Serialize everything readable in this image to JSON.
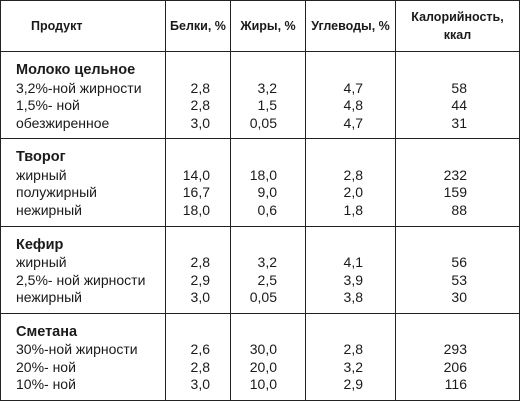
{
  "headers": [
    "Продукт",
    "Белки, %",
    "Жиры, %",
    "Углеводы, %",
    "Калорийность, ккал"
  ],
  "headers_split": {
    "calories_line1": "Калорийность,",
    "calories_line2": "ккал"
  },
  "groups": [
    {
      "name": "Молоко цельное",
      "rows": [
        {
          "label": "3,2%-ной жирности",
          "protein": "2,8",
          "fat": "3,2",
          "carbs": "4,7",
          "kcal": "58"
        },
        {
          "label": "1,5%- ной",
          "protein": "2,8",
          "fat": "1,5",
          "carbs": "4,8",
          "kcal": "44"
        },
        {
          "label": "обезжиренное",
          "protein": "3,0",
          "fat": "0,05",
          "carbs": "4,7",
          "kcal": "31"
        }
      ]
    },
    {
      "name": "Творог",
      "rows": [
        {
          "label": "жирный",
          "protein": "14,0",
          "fat": "18,0",
          "carbs": "2,8",
          "kcal": "232"
        },
        {
          "label": "полужирный",
          "protein": "16,7",
          "fat": "9,0",
          "carbs": "2,0",
          "kcal": "159"
        },
        {
          "label": "нежирный",
          "protein": "18,0",
          "fat": "0,6",
          "carbs": "1,8",
          "kcal": "88"
        }
      ]
    },
    {
      "name": "Кефир",
      "rows": [
        {
          "label": "жирный",
          "protein": "2,8",
          "fat": "3,2",
          "carbs": "4,1",
          "kcal": "56"
        },
        {
          "label": "2,5%- ной жирности",
          "protein": "2,9",
          "fat": "2,5",
          "carbs": "3,9",
          "kcal": "53"
        },
        {
          "label": "нежирный",
          "protein": "3,0",
          "fat": "0,05",
          "carbs": "3,8",
          "kcal": "30"
        }
      ]
    },
    {
      "name": "Сметана",
      "rows": [
        {
          "label": "30%-ной жирности",
          "protein": "2,6",
          "fat": "30,0",
          "carbs": "2,8",
          "kcal": "293"
        },
        {
          "label": "20%- ной",
          "protein": "2,8",
          "fat": "20,0",
          "carbs": "3,2",
          "kcal": "206"
        },
        {
          "label": "10%- ной",
          "protein": "3,0",
          "fat": "10,0",
          "carbs": "2,9",
          "kcal": "116"
        }
      ]
    }
  ]
}
